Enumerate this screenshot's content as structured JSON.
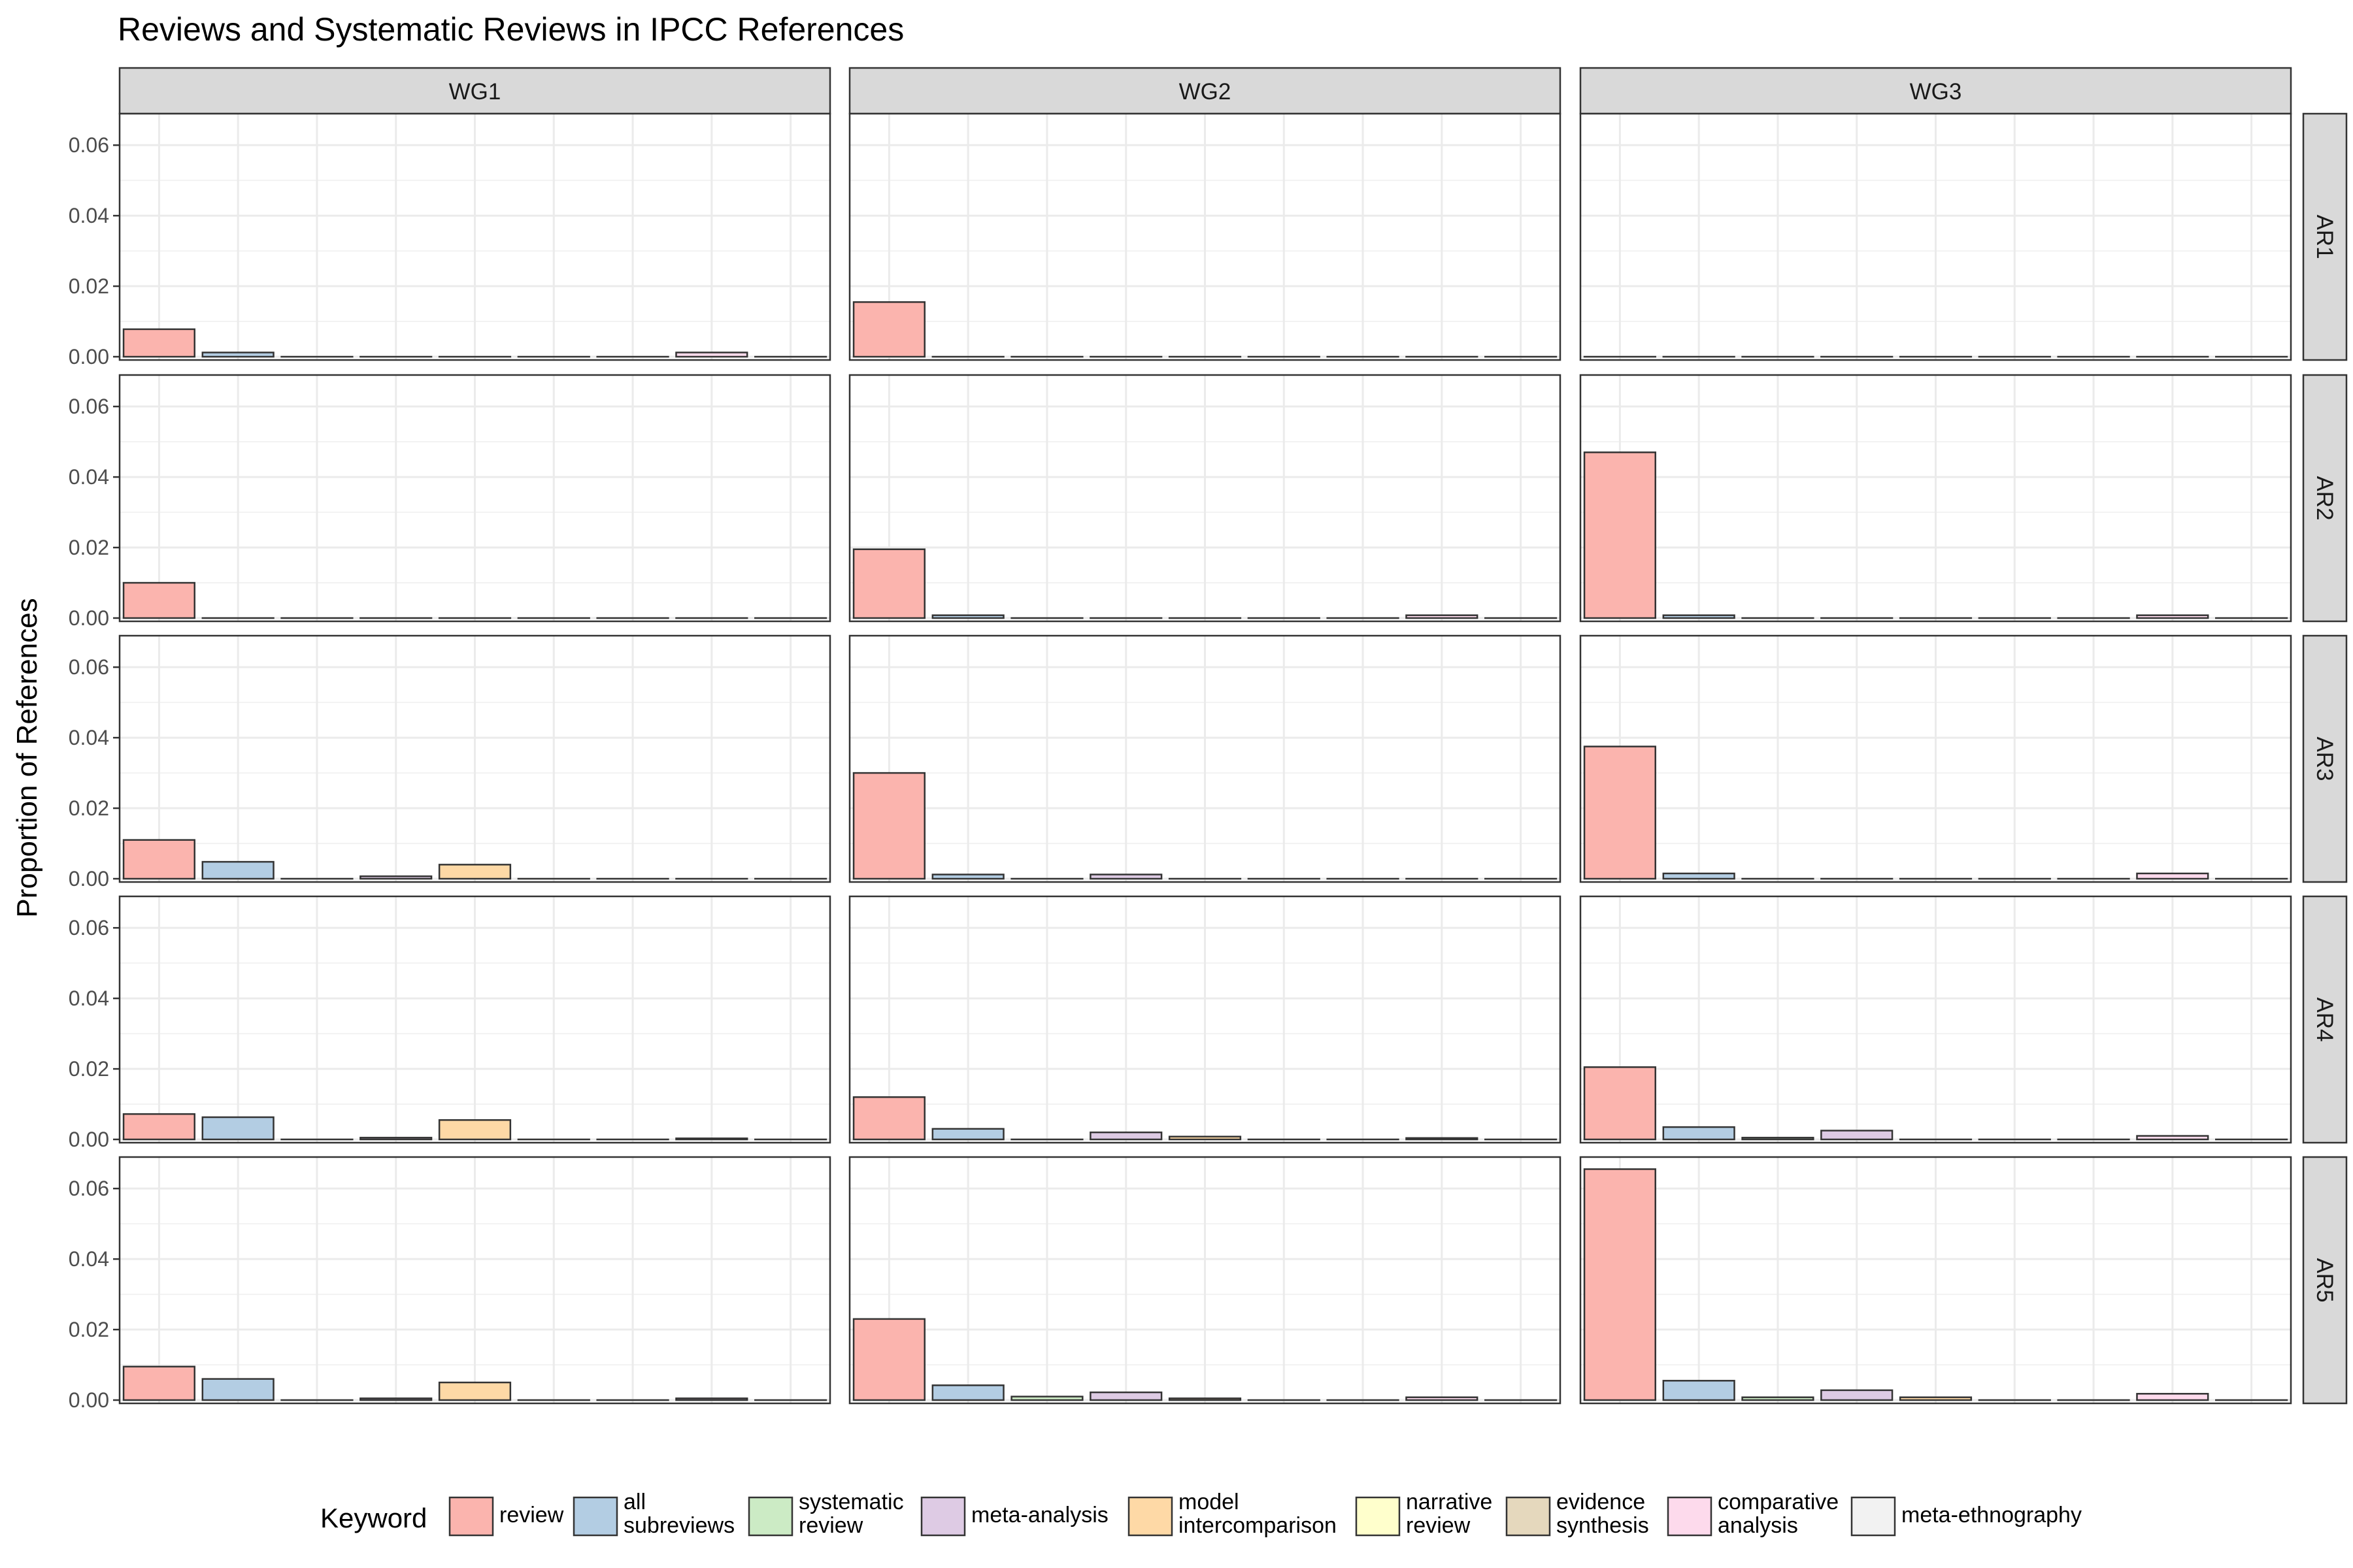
{
  "chart_data": {
    "type": "bar",
    "title": "Reviews and Systematic Reviews in IPCC References",
    "ylabel": "Proportion of References",
    "xlabel": "",
    "ylim": [
      0,
      0.068
    ],
    "yticks": [
      0,
      0.02,
      0.04,
      0.06
    ],
    "ytick_labels": [
      "0.00",
      "0.02",
      "0.04",
      "0.06"
    ],
    "grid": true,
    "facet_columns": [
      "WG1",
      "WG2",
      "WG3"
    ],
    "facet_rows": [
      "AR1",
      "AR2",
      "AR3",
      "AR4",
      "AR5"
    ],
    "legend": {
      "title": "Keyword",
      "position": "bottom",
      "entries": [
        {
          "label": "review",
          "color": "#FBB4AE"
        },
        {
          "label": "all\nsubreviews",
          "color": "#B3CDE3"
        },
        {
          "label": "systematic\nreview",
          "color": "#CCEBC5"
        },
        {
          "label": "meta-analysis",
          "color": "#DECBE4"
        },
        {
          "label": "model\nintercomparison",
          "color": "#FED9A6"
        },
        {
          "label": "narrative\nreview",
          "color": "#FFFFCC"
        },
        {
          "label": "evidence\nsynthesis",
          "color": "#E5D8BD"
        },
        {
          "label": "comparative\nanalysis",
          "color": "#FDDAEC"
        },
        {
          "label": "meta-ethnography",
          "color": "#F2F2F2"
        }
      ]
    },
    "panels": [
      {
        "row": "AR1",
        "col": "WG1",
        "values": [
          0.0078,
          0.0012,
          0,
          0,
          0,
          0,
          0,
          0.0012,
          0
        ]
      },
      {
        "row": "AR1",
        "col": "WG2",
        "values": [
          0.0155,
          0,
          0,
          0,
          0,
          0,
          0,
          0,
          0
        ]
      },
      {
        "row": "AR1",
        "col": "WG3",
        "values": [
          0,
          0,
          0,
          0,
          0,
          0,
          0,
          0,
          0
        ]
      },
      {
        "row": "AR2",
        "col": "WG1",
        "values": [
          0.01,
          0,
          0,
          0,
          0,
          0,
          0,
          0,
          0
        ]
      },
      {
        "row": "AR2",
        "col": "WG2",
        "values": [
          0.0195,
          0.0008,
          0,
          0,
          0,
          0,
          0,
          0.0008,
          0
        ]
      },
      {
        "row": "AR2",
        "col": "WG3",
        "values": [
          0.047,
          0.0008,
          0,
          0,
          0,
          0,
          0,
          0.0008,
          0
        ]
      },
      {
        "row": "AR3",
        "col": "WG1",
        "values": [
          0.011,
          0.0048,
          0,
          0.0007,
          0.004,
          0,
          0,
          0,
          0
        ]
      },
      {
        "row": "AR3",
        "col": "WG2",
        "values": [
          0.03,
          0.0012,
          0,
          0.0012,
          0,
          0,
          0,
          0,
          0
        ]
      },
      {
        "row": "AR3",
        "col": "WG3",
        "values": [
          0.0375,
          0.0015,
          0,
          0,
          0,
          0,
          0,
          0.0015,
          0
        ]
      },
      {
        "row": "AR4",
        "col": "WG1",
        "values": [
          0.0072,
          0.0063,
          0,
          0.0005,
          0.0055,
          0,
          0,
          0.0003,
          0
        ]
      },
      {
        "row": "AR4",
        "col": "WG2",
        "values": [
          0.012,
          0.003,
          0,
          0.002,
          0.0008,
          0,
          0,
          0.0004,
          0
        ]
      },
      {
        "row": "AR4",
        "col": "WG3",
        "values": [
          0.0205,
          0.0035,
          0.0005,
          0.0025,
          0,
          0,
          0,
          0.001,
          0
        ]
      },
      {
        "row": "AR5",
        "col": "WG1",
        "values": [
          0.0095,
          0.006,
          0,
          0.0005,
          0.005,
          0,
          0,
          0.0005,
          0
        ]
      },
      {
        "row": "AR5",
        "col": "WG2",
        "values": [
          0.023,
          0.0042,
          0.001,
          0.0022,
          0.0005,
          0,
          0,
          0.0008,
          0
        ]
      },
      {
        "row": "AR5",
        "col": "WG3",
        "values": [
          0.0655,
          0.0055,
          0.0008,
          0.0028,
          0.0008,
          0,
          0,
          0.0018,
          0
        ]
      }
    ]
  }
}
